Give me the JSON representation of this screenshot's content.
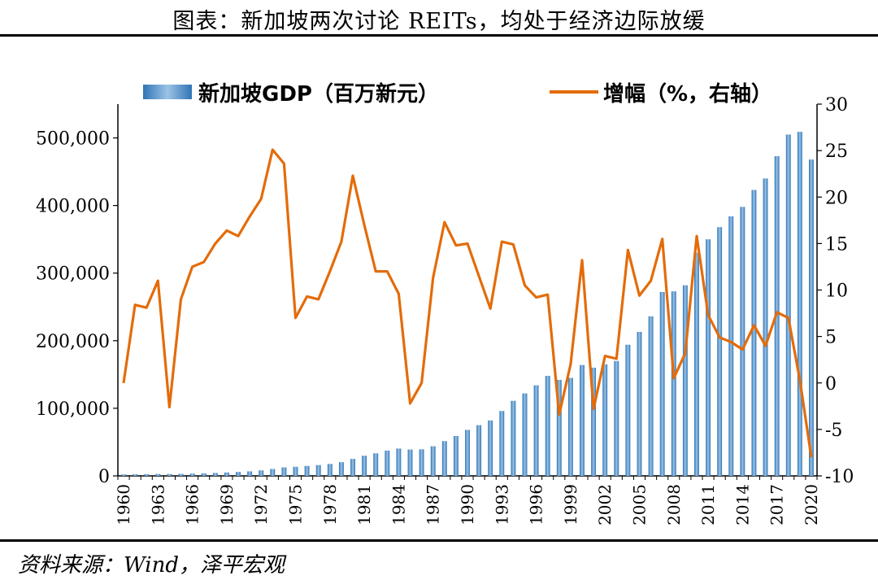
{
  "title": "图表：新加坡两次讨论 REITs，均处于经济边际放缓",
  "source": "资料来源：Wind，泽平宏观",
  "chart_data": {
    "type": "bar+line",
    "legend": {
      "bar_label": "新加坡GDP（百万新元）",
      "line_label": "增幅（%，右轴）"
    },
    "colors": {
      "bar": "#5b9bd5",
      "bar_dark": "#2e75b6",
      "line": "#e36c0a"
    },
    "left_axis": {
      "ylim": [
        0,
        550000
      ],
      "ticks": [
        0,
        100000,
        200000,
        300000,
        400000,
        500000
      ],
      "tick_labels": [
        "0",
        "100,000",
        "200,000",
        "300,000",
        "400,000",
        "500,000"
      ]
    },
    "right_axis": {
      "ylim": [
        -10,
        30
      ],
      "ticks": [
        -10,
        -5,
        0,
        5,
        10,
        15,
        20,
        25,
        30
      ],
      "tick_labels": [
        "-10",
        "-5",
        "0",
        "5",
        "10",
        "15",
        "20",
        "25",
        "30"
      ]
    },
    "x_tick_labels": [
      "1960",
      "1963",
      "1966",
      "1969",
      "1972",
      "1975",
      "1978",
      "1981",
      "1984",
      "1987",
      "1990",
      "1993",
      "1996",
      "1999",
      "2002",
      "2005",
      "2008",
      "2011",
      "2014",
      "2017",
      "2020"
    ],
    "years": [
      1960,
      1961,
      1962,
      1963,
      1964,
      1965,
      1966,
      1967,
      1968,
      1969,
      1970,
      1971,
      1972,
      1973,
      1974,
      1975,
      1976,
      1977,
      1978,
      1979,
      1980,
      1981,
      1982,
      1983,
      1984,
      1985,
      1986,
      1987,
      1988,
      1989,
      1990,
      1991,
      1992,
      1993,
      1994,
      1995,
      1996,
      1997,
      1998,
      1999,
      2000,
      2001,
      2002,
      2003,
      2004,
      2005,
      2006,
      2007,
      2008,
      2009,
      2010,
      2011,
      2012,
      2013,
      2014,
      2015,
      2016,
      2017,
      2018,
      2019,
      2020
    ],
    "series": [
      {
        "name": "新加坡GDP（百万新元）",
        "axis": "left",
        "kind": "bar",
        "values": [
          2150,
          2330,
          2520,
          2800,
          2730,
          2970,
          3330,
          3760,
          4330,
          5000,
          5800,
          6700,
          8100,
          10200,
          12600,
          13500,
          14700,
          16000,
          17700,
          20300,
          25100,
          29800,
          33400,
          37400,
          40400,
          39000,
          39300,
          43800,
          51400,
          59000,
          68000,
          75000,
          82000,
          96000,
          111000,
          122000,
          134000,
          148000,
          142000,
          145000,
          164000,
          160000,
          165000,
          170000,
          194000,
          213000,
          236000,
          272000,
          273000,
          282000,
          330000,
          350000,
          368000,
          384000,
          398000,
          423000,
          440000,
          473000,
          505000,
          509000,
          468000
        ]
      },
      {
        "name": "增幅（%，右轴）",
        "axis": "right",
        "kind": "line",
        "values": [
          0,
          8.4,
          8.1,
          11.0,
          -2.6,
          9.0,
          12.5,
          13.0,
          15.0,
          16.4,
          15.8,
          17.9,
          19.8,
          25.1,
          23.6,
          7.0,
          9.3,
          9.0,
          12.0,
          15.2,
          22.3,
          17.0,
          12.0,
          12.0,
          9.6,
          -2.2,
          0,
          11.3,
          17.3,
          14.8,
          15.0,
          11.5,
          8.0,
          15.2,
          14.9,
          10.5,
          9.2,
          9.5,
          -3.4,
          2.0,
          13.2,
          -2.8,
          2.9,
          2.6,
          14.3,
          9.4,
          11.0,
          15.5,
          0.5,
          3.2,
          15.8,
          7.3,
          4.9,
          4.4,
          3.6,
          6.2,
          4.0,
          7.6,
          7.0,
          0.3,
          -8.0
        ]
      }
    ]
  }
}
